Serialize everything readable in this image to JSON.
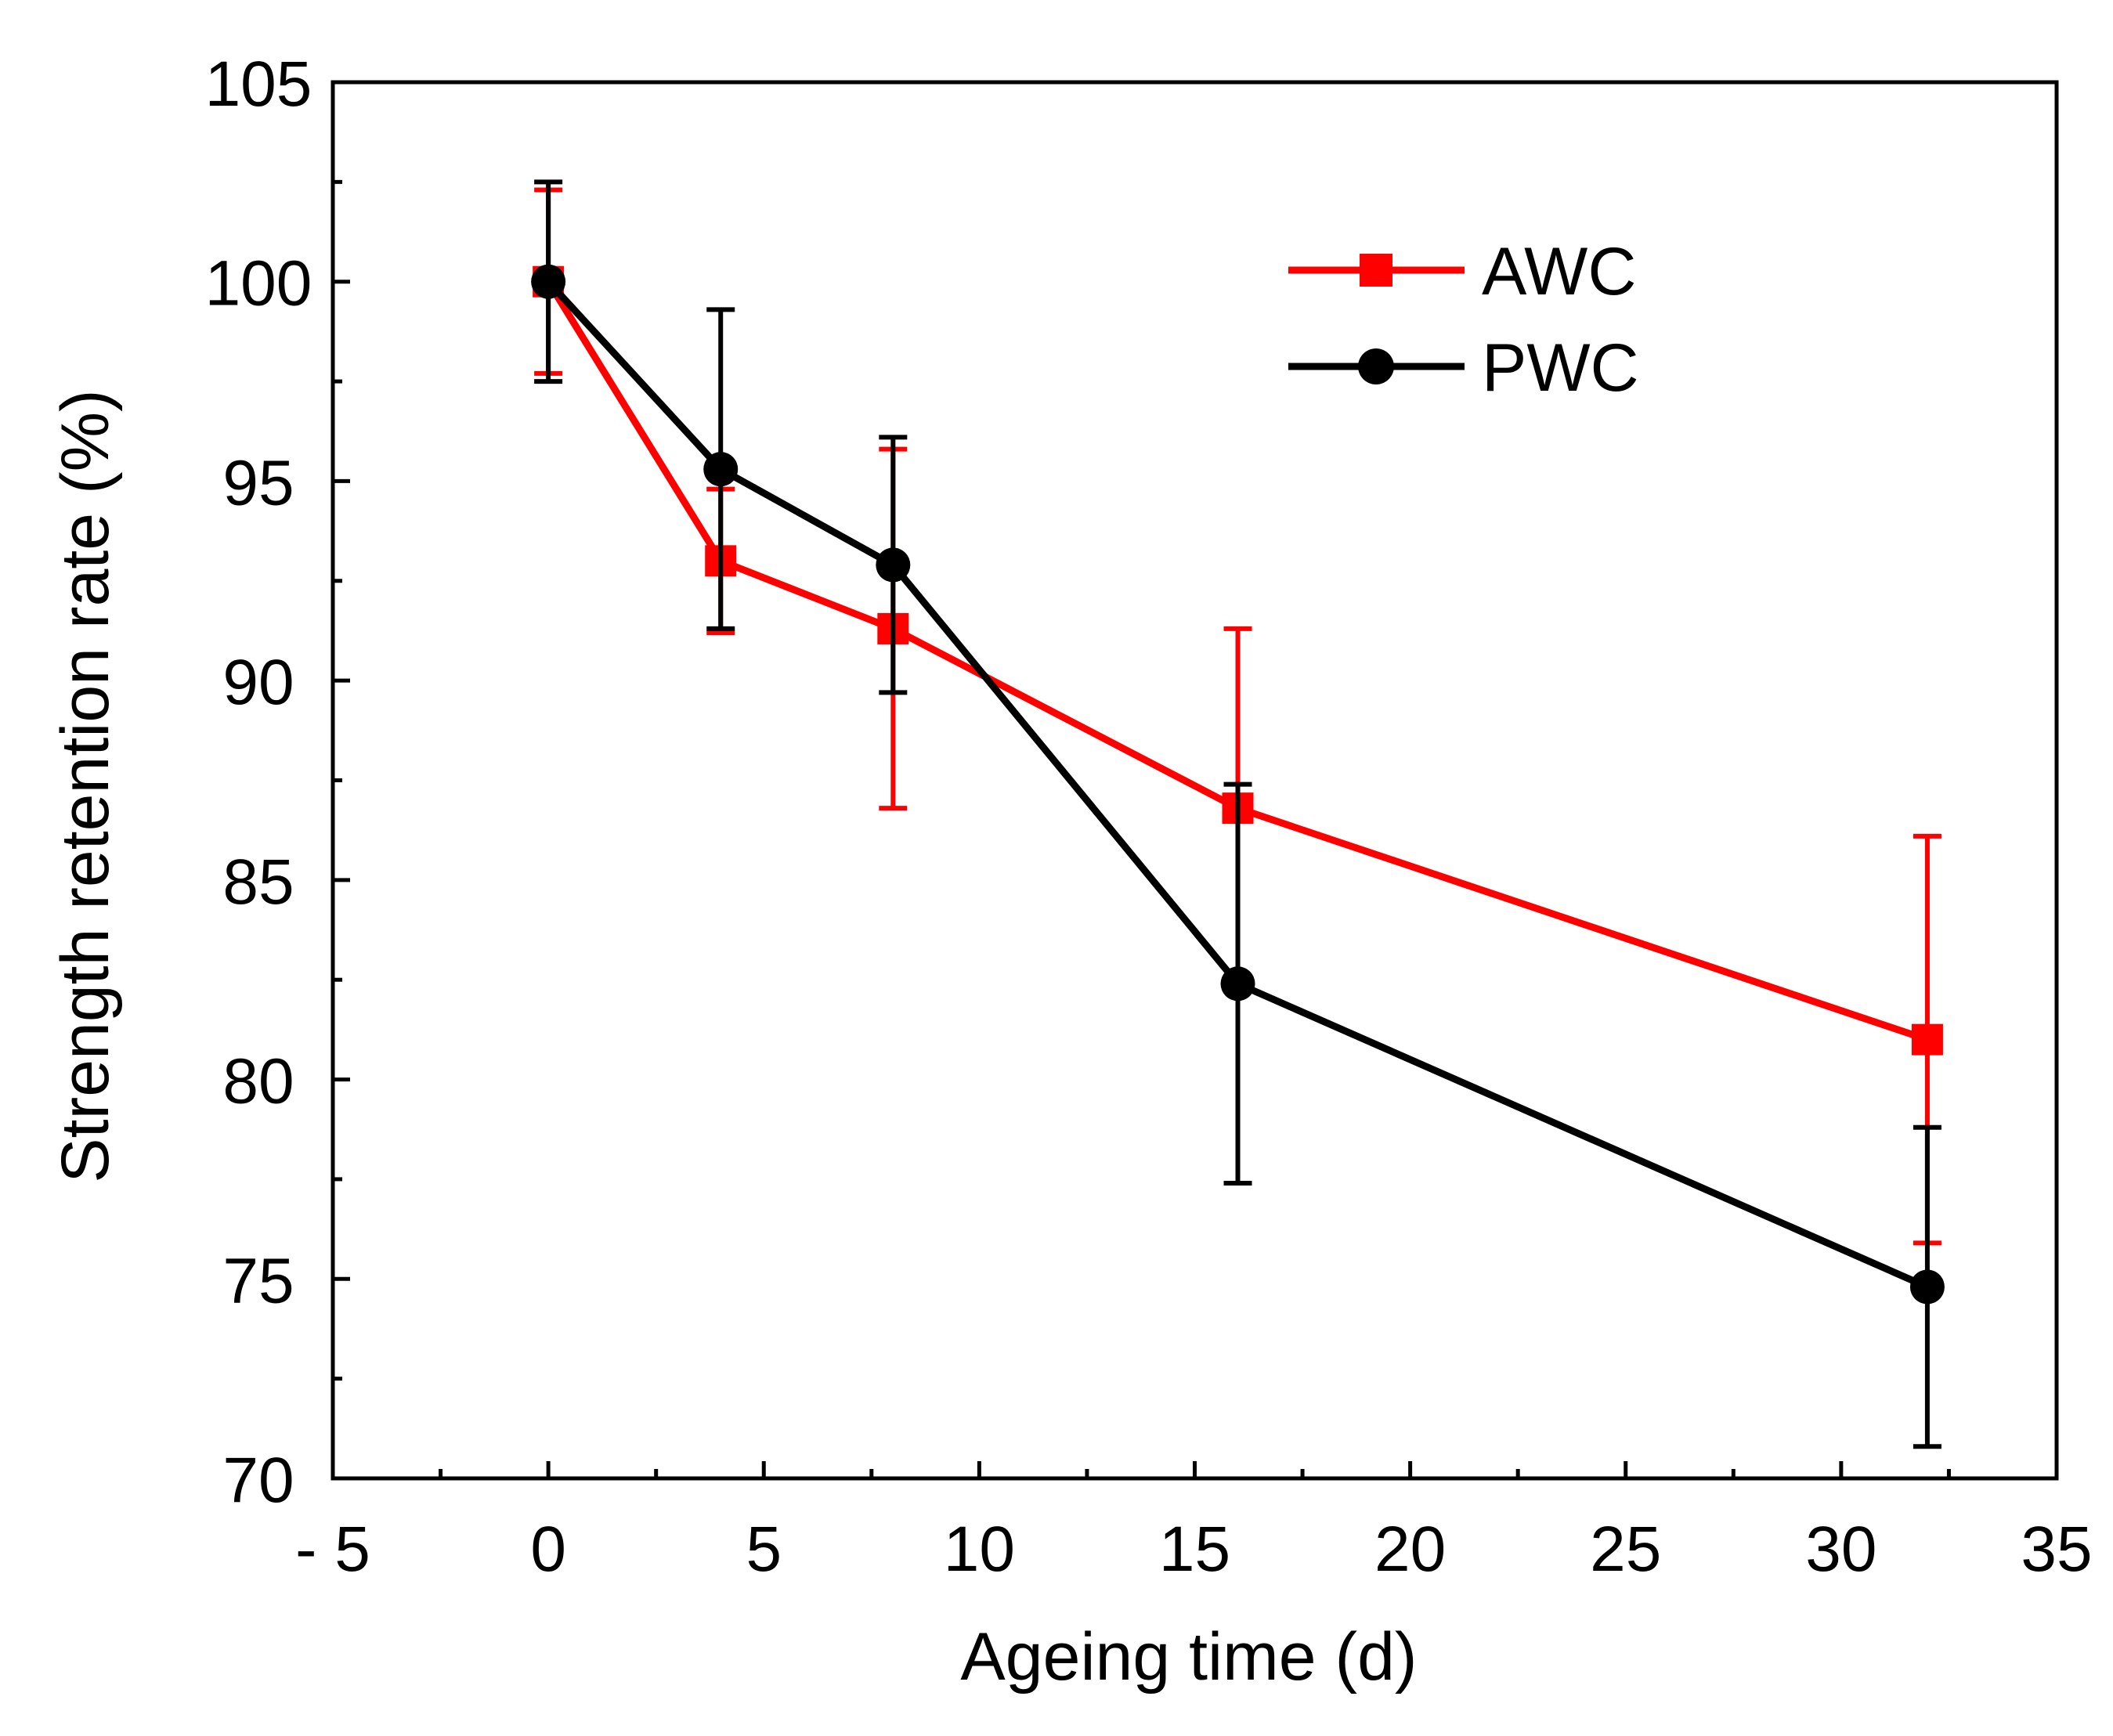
{
  "chart_data": {
    "type": "line",
    "xlabel": "Ageing time (d)",
    "ylabel": "Strength retention rate (%)",
    "xlim": [
      -5,
      35
    ],
    "ylim": [
      70,
      105
    ],
    "x_ticks": [
      -5,
      0,
      5,
      10,
      15,
      20,
      25,
      30,
      35
    ],
    "x_tick_labels": [
      "- 5",
      "0",
      "5",
      "10",
      "15",
      "20",
      "25",
      "30",
      "35"
    ],
    "y_ticks": [
      70,
      75,
      80,
      85,
      90,
      95,
      100,
      105
    ],
    "y_tick_labels": [
      "70",
      "75",
      "80",
      "85",
      "90",
      "95",
      "100",
      "105"
    ],
    "legend_position": "top-right",
    "series": [
      {
        "name": "AWC",
        "color": "#ff0000",
        "marker": "square",
        "x": [
          0,
          4,
          8,
          16,
          32
        ],
        "y": [
          100.0,
          93.0,
          91.3,
          86.8,
          81.0
        ],
        "err": [
          2.3,
          1.8,
          4.5,
          4.5,
          5.1
        ]
      },
      {
        "name": "PWC",
        "color": "#000000",
        "marker": "circle",
        "x": [
          0,
          4,
          8,
          16,
          32
        ],
        "y": [
          100.0,
          95.3,
          92.9,
          82.4,
          74.8
        ],
        "err": [
          2.5,
          4.0,
          3.2,
          5.0,
          4.0
        ]
      }
    ]
  }
}
